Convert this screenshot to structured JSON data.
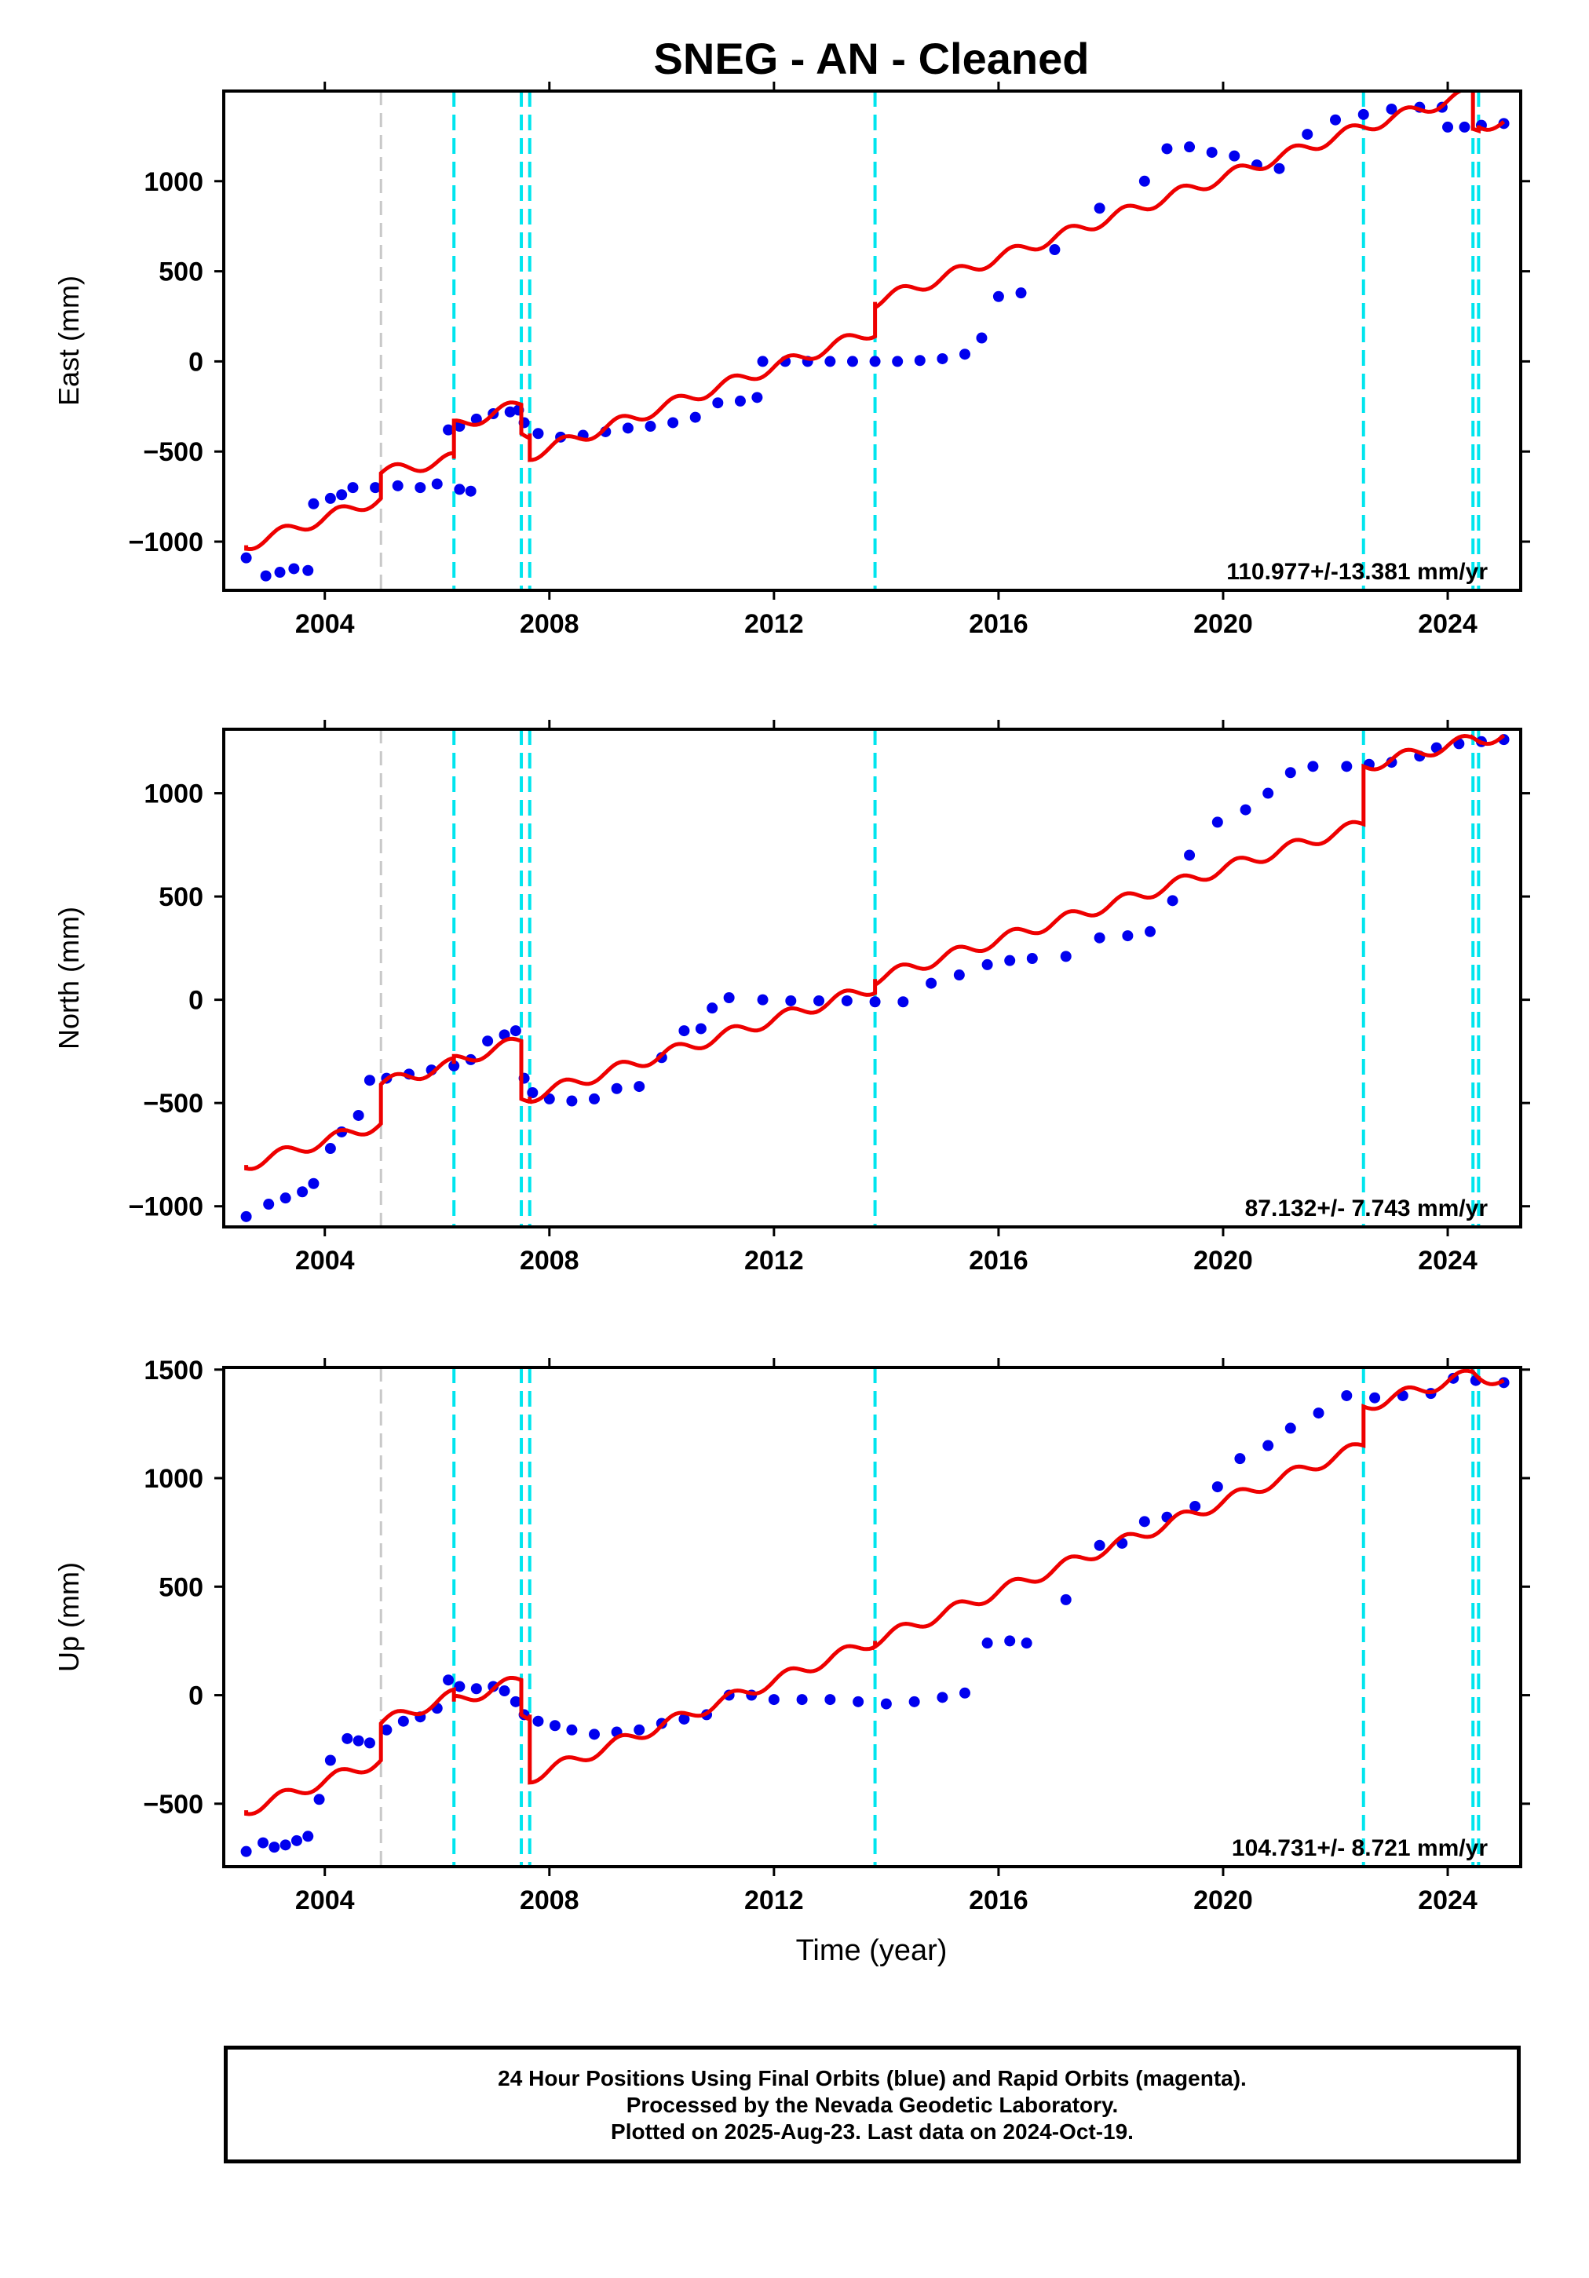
{
  "title": "SNEG  - AN - Cleaned",
  "xlabel": "Time (year)",
  "caption": [
    "24 Hour Positions Using Final Orbits (blue) and Rapid Orbits (magenta).",
    "Processed by the Nevada Geodetic Laboratory.",
    "Plotted on 2025-Aug-23. Last data on 2024-Oct-19."
  ],
  "colors": {
    "data": "#0000ee",
    "model": "#ee0000",
    "step_line": "#00e5ee",
    "gray_line": "#c8c8c8"
  },
  "chart_data": [
    {
      "type": "scatter",
      "ylabel": "East (mm)",
      "rate_text": "110.977+/-13.381 mm/yr",
      "xlim": [
        2002.2,
        2025.3
      ],
      "ylim": [
        -1270,
        1500
      ],
      "xticks": [
        2004,
        2008,
        2012,
        2016,
        2020,
        2024
      ],
      "yticks": [
        -1000,
        -500,
        0,
        500,
        1000
      ],
      "vlines_gray": [
        2005.0
      ],
      "vlines_cyan": [
        2006.3,
        2007.5,
        2007.65,
        2013.8,
        2022.5,
        2024.45,
        2024.55
      ],
      "points": [
        [
          2002.6,
          -1090
        ],
        [
          2002.95,
          -1190
        ],
        [
          2003.2,
          -1170
        ],
        [
          2003.45,
          -1150
        ],
        [
          2003.7,
          -1160
        ],
        [
          2003.8,
          -790
        ],
        [
          2004.1,
          -760
        ],
        [
          2004.3,
          -740
        ],
        [
          2004.5,
          -700
        ],
        [
          2004.9,
          -700
        ],
        [
          2005.3,
          -690
        ],
        [
          2005.7,
          -700
        ],
        [
          2006.0,
          -680
        ],
        [
          2006.4,
          -710
        ],
        [
          2006.6,
          -720
        ],
        [
          2006.2,
          -380
        ],
        [
          2006.4,
          -360
        ],
        [
          2006.7,
          -320
        ],
        [
          2007.0,
          -290
        ],
        [
          2007.3,
          -280
        ],
        [
          2007.45,
          -270
        ],
        [
          2007.55,
          -340
        ],
        [
          2007.8,
          -400
        ],
        [
          2008.2,
          -420
        ],
        [
          2008.6,
          -410
        ],
        [
          2009.0,
          -390
        ],
        [
          2009.4,
          -370
        ],
        [
          2009.8,
          -360
        ],
        [
          2010.2,
          -340
        ],
        [
          2010.6,
          -310
        ],
        [
          2011.0,
          -230
        ],
        [
          2011.4,
          -220
        ],
        [
          2011.7,
          -200
        ],
        [
          2011.8,
          0
        ],
        [
          2012.2,
          0
        ],
        [
          2012.6,
          0
        ],
        [
          2013.0,
          0
        ],
        [
          2013.4,
          0
        ],
        [
          2013.8,
          0
        ],
        [
          2014.2,
          0
        ],
        [
          2014.6,
          5
        ],
        [
          2015.0,
          15
        ],
        [
          2015.4,
          40
        ],
        [
          2015.7,
          130
        ],
        [
          2016.0,
          360
        ],
        [
          2016.4,
          380
        ],
        [
          2017.0,
          620
        ],
        [
          2017.8,
          850
        ],
        [
          2018.6,
          1000
        ],
        [
          2019.0,
          1180
        ],
        [
          2019.4,
          1190
        ],
        [
          2019.8,
          1160
        ],
        [
          2020.2,
          1140
        ],
        [
          2020.6,
          1090
        ],
        [
          2021.0,
          1070
        ],
        [
          2021.5,
          1260
        ],
        [
          2022.0,
          1340
        ],
        [
          2022.5,
          1370
        ],
        [
          2023.0,
          1400
        ],
        [
          2023.5,
          1410
        ],
        [
          2023.9,
          1410
        ],
        [
          2024.0,
          1300
        ],
        [
          2024.3,
          1300
        ],
        [
          2024.6,
          1310
        ],
        [
          2025.0,
          1320
        ]
      ],
      "model": [
        [
          2002.6,
          -1020
        ],
        [
          2005.0,
          -760
        ],
        [
          2005.0,
          -620
        ],
        [
          2006.3,
          -540
        ],
        [
          2006.3,
          -360
        ],
        [
          2007.5,
          -240
        ],
        [
          2007.5,
          -400
        ],
        [
          2007.65,
          -400
        ],
        [
          2007.65,
          -520
        ],
        [
          2013.8,
          170
        ],
        [
          2013.8,
          330
        ],
        [
          2022.5,
          1300
        ],
        [
          2024.45,
          1490
        ],
        [
          2024.45,
          1280
        ],
        [
          2024.55,
          1290
        ],
        [
          2024.55,
          1310
        ],
        [
          2025.0,
          1330
        ]
      ]
    },
    {
      "type": "scatter",
      "ylabel": "North (mm)",
      "rate_text": "87.132+/- 7.743 mm/yr",
      "xlim": [
        2002.2,
        2025.3
      ],
      "ylim": [
        -1100,
        1310
      ],
      "xticks": [
        2004,
        2008,
        2012,
        2016,
        2020,
        2024
      ],
      "yticks": [
        -1000,
        -500,
        0,
        500,
        1000
      ],
      "vlines_gray": [
        2005.0
      ],
      "vlines_cyan": [
        2006.3,
        2007.5,
        2007.65,
        2013.8,
        2022.5,
        2024.45,
        2024.55
      ],
      "points": [
        [
          2002.6,
          -1050
        ],
        [
          2003.0,
          -990
        ],
        [
          2003.3,
          -960
        ],
        [
          2003.6,
          -930
        ],
        [
          2003.8,
          -890
        ],
        [
          2004.1,
          -720
        ],
        [
          2004.3,
          -640
        ],
        [
          2004.6,
          -560
        ],
        [
          2004.8,
          -390
        ],
        [
          2005.1,
          -380
        ],
        [
          2005.5,
          -360
        ],
        [
          2005.9,
          -340
        ],
        [
          2006.3,
          -320
        ],
        [
          2006.6,
          -290
        ],
        [
          2006.9,
          -200
        ],
        [
          2007.2,
          -170
        ],
        [
          2007.4,
          -150
        ],
        [
          2007.55,
          -380
        ],
        [
          2007.7,
          -450
        ],
        [
          2008.0,
          -480
        ],
        [
          2008.4,
          -490
        ],
        [
          2008.8,
          -480
        ],
        [
          2009.2,
          -430
        ],
        [
          2009.6,
          -420
        ],
        [
          2010.0,
          -280
        ],
        [
          2010.4,
          -150
        ],
        [
          2010.7,
          -140
        ],
        [
          2010.9,
          -40
        ],
        [
          2011.2,
          10
        ],
        [
          2011.8,
          0
        ],
        [
          2012.3,
          -5
        ],
        [
          2012.8,
          -5
        ],
        [
          2013.3,
          -5
        ],
        [
          2013.8,
          -10
        ],
        [
          2014.3,
          -10
        ],
        [
          2014.8,
          80
        ],
        [
          2015.3,
          120
        ],
        [
          2015.8,
          170
        ],
        [
          2016.2,
          190
        ],
        [
          2016.6,
          200
        ],
        [
          2017.2,
          210
        ],
        [
          2017.8,
          300
        ],
        [
          2018.3,
          310
        ],
        [
          2018.7,
          330
        ],
        [
          2019.1,
          480
        ],
        [
          2019.4,
          700
        ],
        [
          2019.9,
          860
        ],
        [
          2020.4,
          920
        ],
        [
          2020.8,
          1000
        ],
        [
          2021.2,
          1100
        ],
        [
          2021.6,
          1130
        ],
        [
          2022.2,
          1130
        ],
        [
          2022.6,
          1140
        ],
        [
          2023.0,
          1150
        ],
        [
          2023.5,
          1180
        ],
        [
          2023.8,
          1220
        ],
        [
          2024.2,
          1240
        ],
        [
          2024.6,
          1250
        ],
        [
          2025.0,
          1260
        ]
      ],
      "model": [
        [
          2002.6,
          -800
        ],
        [
          2005.0,
          -600
        ],
        [
          2005.0,
          -410
        ],
        [
          2006.3,
          -310
        ],
        [
          2006.3,
          -300
        ],
        [
          2007.5,
          -200
        ],
        [
          2007.5,
          -480
        ],
        [
          2007.65,
          -470
        ],
        [
          2013.8,
          60
        ],
        [
          2013.8,
          100
        ],
        [
          2022.5,
          850
        ],
        [
          2022.5,
          1130
        ],
        [
          2024.45,
          1260
        ],
        [
          2024.55,
          1260
        ],
        [
          2025.0,
          1280
        ]
      ]
    },
    {
      "type": "scatter",
      "ylabel": "Up (mm)",
      "rate_text": "104.731+/- 8.721 mm/yr",
      "xlim": [
        2002.2,
        2025.3
      ],
      "ylim": [
        -790,
        1510
      ],
      "xticks": [
        2004,
        2008,
        2012,
        2016,
        2020,
        2024
      ],
      "yticks": [
        -500,
        0,
        500,
        1000,
        1500
      ],
      "vlines_gray": [
        2005.0
      ],
      "vlines_cyan": [
        2006.3,
        2007.5,
        2007.65,
        2013.8,
        2022.5,
        2024.45,
        2024.55
      ],
      "points": [
        [
          2002.6,
          -720
        ],
        [
          2002.9,
          -680
        ],
        [
          2003.1,
          -700
        ],
        [
          2003.3,
          -690
        ],
        [
          2003.5,
          -670
        ],
        [
          2003.7,
          -650
        ],
        [
          2003.9,
          -480
        ],
        [
          2004.1,
          -300
        ],
        [
          2004.4,
          -200
        ],
        [
          2004.6,
          -210
        ],
        [
          2004.8,
          -220
        ],
        [
          2005.1,
          -160
        ],
        [
          2005.4,
          -120
        ],
        [
          2005.7,
          -100
        ],
        [
          2006.0,
          -60
        ],
        [
          2006.2,
          70
        ],
        [
          2006.4,
          40
        ],
        [
          2006.7,
          30
        ],
        [
          2007.0,
          40
        ],
        [
          2007.2,
          20
        ],
        [
          2007.4,
          -30
        ],
        [
          2007.55,
          -90
        ],
        [
          2007.8,
          -120
        ],
        [
          2008.1,
          -140
        ],
        [
          2008.4,
          -160
        ],
        [
          2008.8,
          -180
        ],
        [
          2009.2,
          -170
        ],
        [
          2009.6,
          -160
        ],
        [
          2010.0,
          -130
        ],
        [
          2010.4,
          -110
        ],
        [
          2010.8,
          -90
        ],
        [
          2011.2,
          0
        ],
        [
          2011.6,
          0
        ],
        [
          2012.0,
          -20
        ],
        [
          2012.5,
          -20
        ],
        [
          2013.0,
          -20
        ],
        [
          2013.5,
          -30
        ],
        [
          2014.0,
          -40
        ],
        [
          2014.5,
          -30
        ],
        [
          2015.0,
          -10
        ],
        [
          2015.4,
          10
        ],
        [
          2015.8,
          240
        ],
        [
          2016.2,
          250
        ],
        [
          2016.5,
          240
        ],
        [
          2017.2,
          440
        ],
        [
          2017.8,
          690
        ],
        [
          2018.2,
          700
        ],
        [
          2018.6,
          800
        ],
        [
          2019.0,
          820
        ],
        [
          2019.5,
          870
        ],
        [
          2019.9,
          960
        ],
        [
          2020.3,
          1090
        ],
        [
          2020.8,
          1150
        ],
        [
          2021.2,
          1230
        ],
        [
          2021.7,
          1300
        ],
        [
          2022.2,
          1380
        ],
        [
          2022.7,
          1370
        ],
        [
          2023.2,
          1380
        ],
        [
          2023.7,
          1390
        ],
        [
          2024.1,
          1460
        ],
        [
          2024.5,
          1450
        ],
        [
          2025.0,
          1440
        ]
      ],
      "model": [
        [
          2002.6,
          -530
        ],
        [
          2005.0,
          -300
        ],
        [
          2005.0,
          -130
        ],
        [
          2006.3,
          0
        ],
        [
          2006.3,
          -30
        ],
        [
          2007.5,
          70
        ],
        [
          2007.5,
          -90
        ],
        [
          2007.65,
          -90
        ],
        [
          2007.65,
          -380
        ],
        [
          2013.8,
          250
        ],
        [
          2013.8,
          250
        ],
        [
          2022.5,
          1150
        ],
        [
          2022.5,
          1330
        ],
        [
          2024.45,
          1480
        ],
        [
          2024.55,
          1470
        ],
        [
          2025.0,
          1450
        ]
      ]
    }
  ]
}
